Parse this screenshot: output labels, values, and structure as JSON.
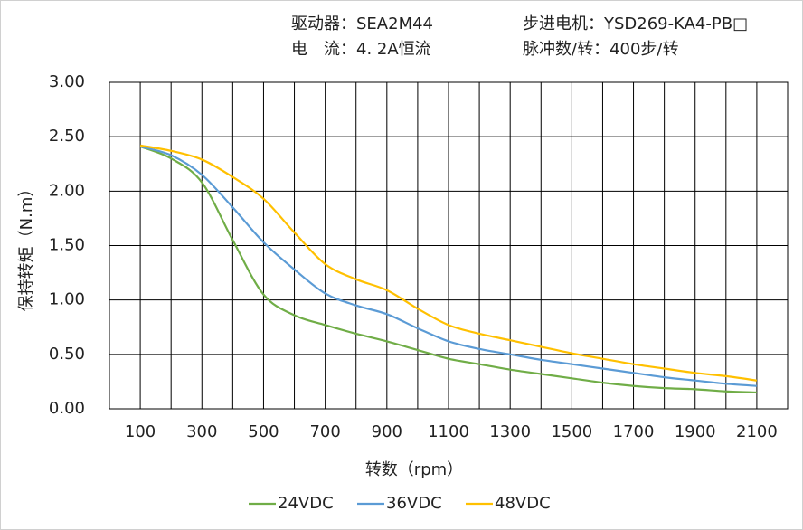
{
  "chart_data": {
    "type": "line",
    "header": [
      "驱动器：SEA2M44",
      "步进电机：YSD269-KA4-PB□",
      "电　流：4. 2A恒流",
      "脉冲数/转：400步/转"
    ],
    "xlabel": "转数（rpm）",
    "ylabel": "保持转矩（N.m）",
    "x": [
      100,
      200,
      300,
      400,
      500,
      600,
      700,
      800,
      900,
      1000,
      1100,
      1200,
      1300,
      1400,
      1500,
      1600,
      1700,
      1800,
      1900,
      2000,
      2100
    ],
    "series": [
      {
        "name": "24VDC",
        "color": "#70ad47",
        "values": [
          2.41,
          2.3,
          2.08,
          1.55,
          1.05,
          0.86,
          0.77,
          0.69,
          0.62,
          0.54,
          0.46,
          0.41,
          0.36,
          0.32,
          0.28,
          0.24,
          0.21,
          0.19,
          0.18,
          0.16,
          0.15
        ]
      },
      {
        "name": "36VDC",
        "color": "#5b9bd5",
        "values": [
          2.41,
          2.33,
          2.15,
          1.85,
          1.53,
          1.28,
          1.06,
          0.95,
          0.87,
          0.74,
          0.62,
          0.55,
          0.5,
          0.45,
          0.41,
          0.37,
          0.33,
          0.29,
          0.26,
          0.23,
          0.21
        ]
      },
      {
        "name": "48VDC",
        "color": "#ffc000",
        "values": [
          2.42,
          2.37,
          2.29,
          2.13,
          1.93,
          1.62,
          1.33,
          1.19,
          1.09,
          0.92,
          0.77,
          0.69,
          0.63,
          0.57,
          0.51,
          0.46,
          0.41,
          0.37,
          0.33,
          0.3,
          0.26
        ]
      }
    ],
    "xlim": [
      0,
      2200
    ],
    "xticks": [
      100,
      300,
      500,
      700,
      900,
      1100,
      1300,
      1500,
      1700,
      1900,
      2100
    ],
    "xminor": [
      200,
      400,
      600,
      800,
      1000,
      1200,
      1400,
      1600,
      1800,
      2000
    ],
    "ylim": [
      0,
      3
    ],
    "yticks": [
      {
        "value": 0,
        "label": "0.00"
      },
      {
        "value": 0.5,
        "label": "0.50"
      },
      {
        "value": 1,
        "label": "1.00"
      },
      {
        "value": 1.5,
        "label": "1.50"
      },
      {
        "value": 2,
        "label": "2.00"
      },
      {
        "value": 2.5,
        "label": "2.50"
      },
      {
        "value": 3,
        "label": "3.00"
      }
    ],
    "grid": true
  }
}
